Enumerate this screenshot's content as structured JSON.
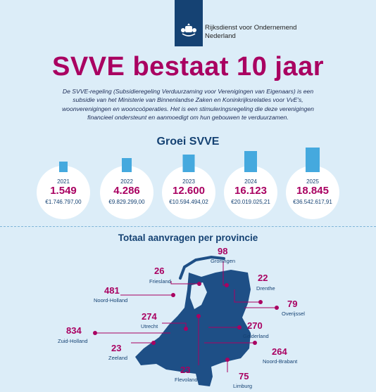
{
  "header": {
    "org_line1": "Rijksdienst voor Ondernemend",
    "org_line2": "Nederland"
  },
  "title": "SVVE bestaat 10 jaar",
  "intro": "De SVVE-regeling (Subsidieregeling Verduurzaming voor Verenigingen van Eigenaars) is een subsidie van het Ministerie van Binnenlandse Zaken en Koninkrijksrelaties voor VvE's, woonverenigingen en wooncoöperaties. Het is een stimuleringsregeling die deze verenigingen financieel ondersteunt en aanmoedigt om hun gebouwen te verduurzamen.",
  "growth": {
    "title": "Groei SVVE",
    "years": [
      {
        "year": "2021",
        "count": "1.549",
        "amount": "€1.746.797,00"
      },
      {
        "year": "2022",
        "count": "4.286",
        "amount": "€9.829.299,00"
      },
      {
        "year": "2023",
        "count": "12.600",
        "amount": "€10.594.494,02"
      },
      {
        "year": "2024",
        "count": "16.123",
        "amount": "€20.019.025,21"
      },
      {
        "year": "2025",
        "count": "18.845",
        "amount": "€36.542.617,91"
      }
    ]
  },
  "provinces": {
    "title": "Totaal aanvragen per provincie",
    "items": [
      {
        "name": "Groningen",
        "count": "98"
      },
      {
        "name": "Friesland",
        "count": "26"
      },
      {
        "name": "Drenthe",
        "count": "22"
      },
      {
        "name": "Noord-Holland",
        "count": "481"
      },
      {
        "name": "Overijssel",
        "count": "79"
      },
      {
        "name": "Utrecht",
        "count": "274"
      },
      {
        "name": "Gelderland",
        "count": "270"
      },
      {
        "name": "Zuid-Holland",
        "count": "834"
      },
      {
        "name": "Zeeland",
        "count": "23"
      },
      {
        "name": "Noord-Brabant",
        "count": "264"
      },
      {
        "name": "Flevoland",
        "count": "23"
      },
      {
        "name": "Limburg",
        "count": "75"
      }
    ]
  },
  "colors": {
    "accent": "#a90061",
    "navy": "#154273",
    "background": "#dcedf8",
    "building": "#45a9de",
    "map": "#1e4f86"
  }
}
